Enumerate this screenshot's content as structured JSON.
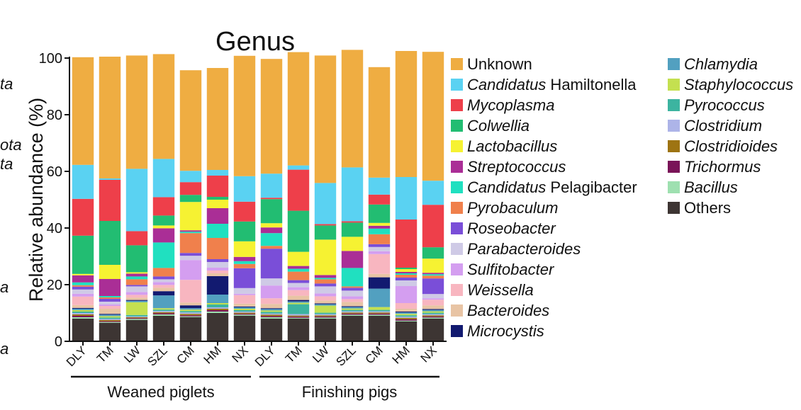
{
  "cutoff_labels": [
    "ta",
    "ota",
    "ta",
    "a",
    "a"
  ],
  "chart_data": {
    "type": "bar",
    "stacked": true,
    "title": "Genus",
    "ylabel": "Relative abundance (%)",
    "xlabel": "",
    "ylim": [
      0,
      100
    ],
    "yticks": [
      0,
      20,
      40,
      60,
      80,
      100
    ],
    "groups": [
      {
        "label": "Weaned piglets",
        "categories": [
          "DLY",
          "TM",
          "LW",
          "SZL",
          "CM",
          "HM",
          "NX"
        ]
      },
      {
        "label": "Finishing pigs",
        "categories": [
          "DLY",
          "TM",
          "LW",
          "SZL",
          "CM",
          "HM",
          "NX"
        ]
      }
    ],
    "categories": [
      "DLY",
      "TM",
      "LW",
      "SZL",
      "CM",
      "HM",
      "NX",
      "DLY",
      "TM",
      "LW",
      "SZL",
      "CM",
      "HM",
      "NX"
    ],
    "legend_position": "right",
    "series": [
      {
        "name": "Others",
        "color": "#3d3533",
        "values": [
          8,
          6.5,
          7.5,
          9,
          8.5,
          10,
          9,
          8,
          8,
          8,
          9,
          9,
          7,
          8
        ]
      },
      {
        "name": "Bacillus",
        "color": "#9ee0b0",
        "values": [
          0.5,
          0.3,
          0.4,
          0.5,
          0.3,
          0.5,
          0.4,
          0.5,
          0.3,
          0.4,
          0.4,
          0.4,
          0.3,
          0.4
        ]
      },
      {
        "name": "Trichormus",
        "color": "#7a1458",
        "values": [
          0.5,
          0.3,
          0.3,
          0.4,
          0.4,
          0.5,
          0.3,
          0.4,
          0.4,
          0.4,
          0.4,
          0.4,
          0.5,
          0.4
        ]
      },
      {
        "name": "Clostridioides",
        "color": "#9e7412",
        "values": [
          0.5,
          0.4,
          0.3,
          0.4,
          0.5,
          0.5,
          0.4,
          0.5,
          0.4,
          0.4,
          0.4,
          0.4,
          0.5,
          0.4
        ]
      },
      {
        "name": "Clostridium",
        "color": "#adb4e8",
        "values": [
          0.5,
          0.4,
          0.3,
          0.4,
          0.5,
          0.5,
          0.4,
          0.4,
          0.5,
          0.4,
          0.4,
          0.4,
          0.4,
          0.4
        ]
      },
      {
        "name": "Pyrococcus",
        "color": "#3cb4a0",
        "values": [
          0.5,
          0.5,
          0.5,
          0.5,
          0.5,
          1.0,
          0.5,
          0.6,
          3.5,
          0.5,
          0.5,
          0.5,
          0.5,
          0.5
        ]
      },
      {
        "name": "Staphylococcus",
        "color": "#c4e050",
        "values": [
          0.5,
          0.5,
          4.5,
          0.5,
          0.5,
          0.5,
          0.5,
          0.5,
          0.5,
          2.5,
          0.5,
          1.0,
          0.5,
          0.5
        ]
      },
      {
        "name": "Chlamydia",
        "color": "#52a0c0",
        "values": [
          0.5,
          0.5,
          0.5,
          4.5,
          0.5,
          3.0,
          0.5,
          0.5,
          0.5,
          0.5,
          0.5,
          6.5,
          0.5,
          0.5
        ]
      },
      {
        "name": "Microcystis",
        "color": "#121a70",
        "values": [
          0.3,
          0.3,
          0.3,
          1.5,
          1.0,
          6.5,
          0.3,
          0.3,
          0.5,
          0.3,
          0.3,
          4.0,
          0.3,
          0.3
        ]
      },
      {
        "name": "Bacteroides",
        "color": "#e8c4a4",
        "values": [
          1.0,
          1.8,
          0.8,
          1.2,
          1.0,
          1.0,
          1.0,
          1.5,
          1.5,
          1.0,
          1.5,
          1.2,
          1.0,
          1.3
        ]
      },
      {
        "name": "Weissella",
        "color": "#f8b6c0",
        "values": [
          3.0,
          1.0,
          1.0,
          1.0,
          8.0,
          1.0,
          3.0,
          2.0,
          2.0,
          1.5,
          1.0,
          7.0,
          2.0,
          2.0
        ]
      },
      {
        "name": "Sulfitobacter",
        "color": "#d49ef0",
        "values": [
          1.0,
          0.5,
          1.0,
          1.0,
          7.0,
          1.0,
          0.5,
          4.5,
          1.0,
          1.0,
          1.0,
          1.0,
          6.0,
          0.5
        ]
      },
      {
        "name": "Parabacteroides",
        "color": "#cfcae6",
        "values": [
          1.5,
          1.0,
          2.0,
          1.0,
          1.5,
          2.0,
          2.0,
          2.5,
          1.5,
          2.5,
          2.0,
          1.5,
          2.0,
          1.5
        ]
      },
      {
        "name": "Roseobacter",
        "color": "#7a4ed8",
        "values": [
          1.0,
          1.0,
          0.5,
          1.0,
          1.0,
          1.0,
          7.0,
          10.5,
          1.0,
          1.0,
          1.0,
          1.0,
          1.0,
          5.5
        ]
      },
      {
        "name": "Pyrobaculum",
        "color": "#f0804c",
        "values": [
          0.5,
          0.5,
          2.0,
          3.0,
          7.0,
          7.5,
          1.5,
          1.0,
          3.0,
          1.5,
          0.5,
          3.5,
          1.0,
          1.0
        ]
      },
      {
        "name": "Candidatus Pelagibacter",
        "color": "#20e0c0",
        "values": [
          1.0,
          0.5,
          1.0,
          9.0,
          0.5,
          5.0,
          1.0,
          4.5,
          1.0,
          0.5,
          6.5,
          2.0,
          0.5,
          0.5
        ]
      },
      {
        "name": "Streptococcus",
        "color": "#aa2e96",
        "values": [
          2.5,
          6.0,
          1.0,
          5.0,
          0.5,
          5.5,
          1.5,
          2.0,
          1.0,
          1.0,
          6.0,
          1.0,
          0.5,
          0.5
        ]
      },
      {
        "name": "Lactobacillus",
        "color": "#f6f232",
        "values": [
          0.5,
          5.0,
          0.5,
          1.0,
          10.0,
          3.0,
          5.5,
          1.5,
          5.0,
          12.5,
          5.0,
          1.0,
          1.0,
          5.0
        ]
      },
      {
        "name": "Colwellia",
        "color": "#22bd72",
        "values": [
          13.5,
          15.5,
          9.5,
          3.5,
          2.5,
          1.0,
          7.0,
          8.5,
          14.5,
          5.0,
          5.0,
          6.5,
          0.5,
          4.0
        ]
      },
      {
        "name": "Mycoplasma",
        "color": "#ee3f4a",
        "values": [
          13.0,
          14.5,
          5.0,
          6.5,
          4.5,
          7.5,
          7.0,
          0.5,
          14.5,
          0.5,
          0.5,
          3.5,
          17.0,
          15.0
        ]
      },
      {
        "name": "Candidatus Hamiltonella",
        "color": "#5ad2f2",
        "values": [
          12.0,
          0.5,
          22.0,
          13.5,
          4.0,
          2.0,
          9.0,
          8.5,
          1.5,
          14.5,
          19.0,
          6.0,
          15.0,
          8.5
        ]
      },
      {
        "name": "Unknown",
        "color": "#efad42",
        "values": [
          38.0,
          43.0,
          40.0,
          37.0,
          35.5,
          36.0,
          42.5,
          40.5,
          40.0,
          45.0,
          41.5,
          39.0,
          44.5,
          45.5
        ]
      }
    ],
    "legend": [
      [
        {
          "prefix": "",
          "name": "Unknown",
          "suffix": "",
          "color": "#efad42"
        },
        {
          "prefix": "Candidatus",
          "name": " Hamiltonella",
          "suffix": "",
          "italicPart": "prefix",
          "color": "#5ad2f2"
        },
        {
          "prefix": "",
          "name": "Mycoplasma",
          "suffix": "",
          "italicPart": "name",
          "color": "#ee3f4a"
        },
        {
          "prefix": "",
          "name": "Colwellia",
          "suffix": "",
          "italicPart": "name",
          "color": "#22bd72"
        },
        {
          "prefix": "",
          "name": "Lactobacillus",
          "suffix": "",
          "italicPart": "name",
          "color": "#f6f232"
        },
        {
          "prefix": "",
          "name": "Streptococcus",
          "suffix": "",
          "italicPart": "name",
          "color": "#aa2e96"
        },
        {
          "prefix": "Candidatus",
          "name": " Pelagibacter",
          "suffix": "",
          "italicPart": "prefix",
          "color": "#20e0c0"
        },
        {
          "prefix": "",
          "name": "Pyrobaculum",
          "suffix": "",
          "italicPart": "name",
          "color": "#f0804c"
        },
        {
          "prefix": "",
          "name": "Roseobacter",
          "suffix": "",
          "italicPart": "name",
          "color": "#7a4ed8"
        },
        {
          "prefix": "",
          "name": "Parabacteroides",
          "suffix": "",
          "italicPart": "name",
          "color": "#cfcae6"
        },
        {
          "prefix": "",
          "name": "Sulfitobacter",
          "suffix": "",
          "italicPart": "name",
          "color": "#d49ef0"
        },
        {
          "prefix": "",
          "name": "Weissella",
          "suffix": "",
          "italicPart": "name",
          "color": "#f8b6c0"
        },
        {
          "prefix": "",
          "name": "Bacteroides",
          "suffix": "",
          "italicPart": "name",
          "color": "#e8c4a4"
        },
        {
          "prefix": "",
          "name": "Microcystis",
          "suffix": "",
          "italicPart": "name",
          "color": "#121a70"
        }
      ],
      [
        {
          "prefix": "",
          "name": "Chlamydia",
          "suffix": "",
          "italicPart": "name",
          "color": "#52a0c0"
        },
        {
          "prefix": "",
          "name": "Staphylococcus",
          "suffix": "",
          "italicPart": "name",
          "color": "#c4e050"
        },
        {
          "prefix": "",
          "name": "Pyrococcus",
          "suffix": "",
          "italicPart": "name",
          "color": "#3cb4a0"
        },
        {
          "prefix": "",
          "name": "Clostridium",
          "suffix": "",
          "italicPart": "name",
          "color": "#adb4e8"
        },
        {
          "prefix": "",
          "name": "Clostridioides",
          "suffix": "",
          "italicPart": "name",
          "color": "#9e7412"
        },
        {
          "prefix": "",
          "name": "Trichormus",
          "suffix": "",
          "italicPart": "name",
          "color": "#7a1458"
        },
        {
          "prefix": "",
          "name": "Bacillus",
          "suffix": "",
          "italicPart": "name",
          "color": "#9ee0b0"
        },
        {
          "prefix": "",
          "name": "Others",
          "suffix": "",
          "color": "#3d3533"
        }
      ]
    ]
  }
}
